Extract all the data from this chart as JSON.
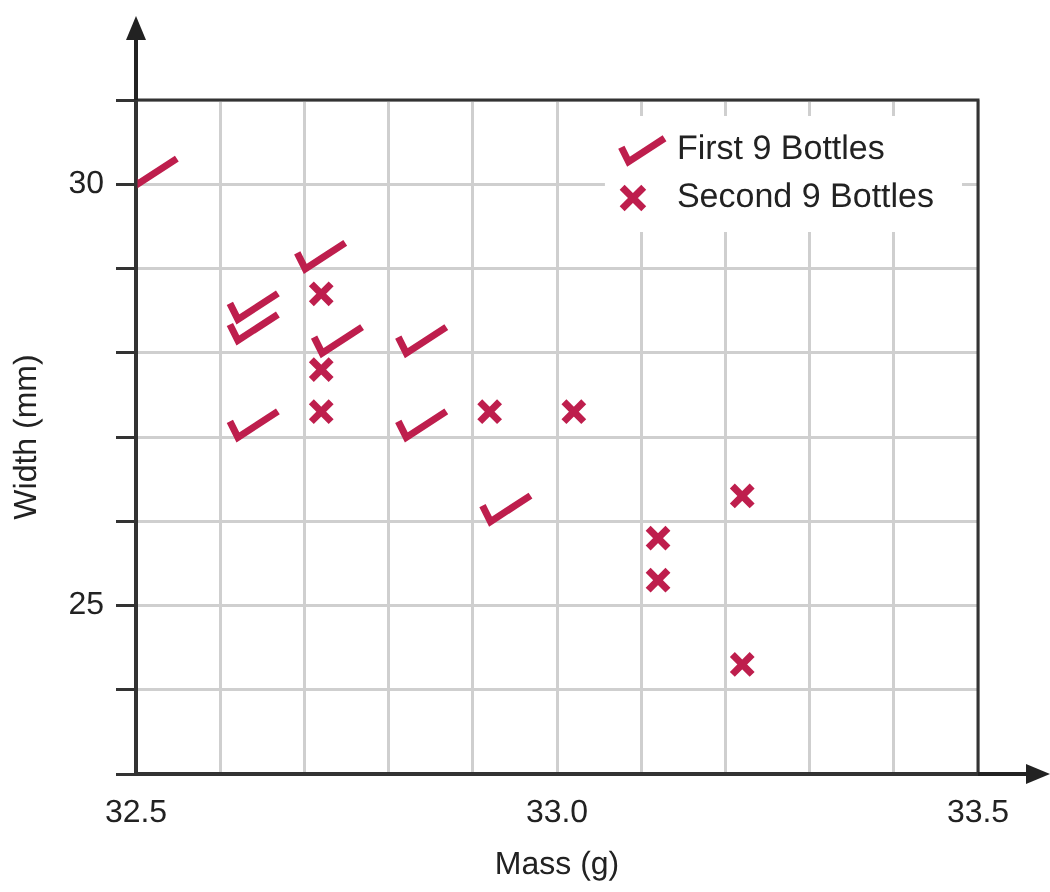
{
  "chart_data": {
    "type": "scatter",
    "xlabel": "Mass (g)",
    "ylabel": "Width (mm)",
    "xlim": [
      32.5,
      33.5
    ],
    "ylim": [
      23,
      31
    ],
    "xticks": [
      32.5,
      {
        "value": 32.6,
        "label": null
      },
      {
        "value": 32.7,
        "label": null
      },
      {
        "value": 32.8,
        "label": null
      },
      {
        "value": 32.9,
        "label": null
      },
      {
        "value": 33.0,
        "label": "33.0"
      },
      {
        "value": 33.1,
        "label": null
      },
      {
        "value": 33.2,
        "label": null
      },
      {
        "value": 33.3,
        "label": null
      },
      {
        "value": 33.4,
        "label": null
      },
      33.5
    ],
    "yticks": [
      {
        "value": 23,
        "label": null
      },
      {
        "value": 24,
        "label": null
      },
      25,
      {
        "value": 26,
        "label": null
      },
      {
        "value": 27,
        "label": null
      },
      {
        "value": 28,
        "label": null
      },
      {
        "value": 29,
        "label": null
      },
      30,
      {
        "value": 31,
        "label": null
      }
    ],
    "grid": true,
    "legend": "top right",
    "series": [
      {
        "name": "First 9 Bottles",
        "color": "#be1e4d",
        "x": [
          32.52,
          32.72,
          32.64,
          32.64,
          32.74,
          32.84,
          32.64,
          32.84,
          32.94
        ],
        "values": [
          30.15,
          29.15,
          28.55,
          28.3,
          28.15,
          28.15,
          27.15,
          27.15,
          26.15
        ]
      },
      {
        "name": "Second 9 Bottles",
        "color": "#be1e4d",
        "marker": "cross",
        "x": [
          32.72,
          32.72,
          32.72,
          32.92,
          33.02,
          33.22,
          33.12,
          33.12,
          33.22
        ],
        "values": [
          28.7,
          27.8,
          27.3,
          27.3,
          27.3,
          26.3,
          25.8,
          25.3,
          24.3
        ]
      }
    ]
  }
}
